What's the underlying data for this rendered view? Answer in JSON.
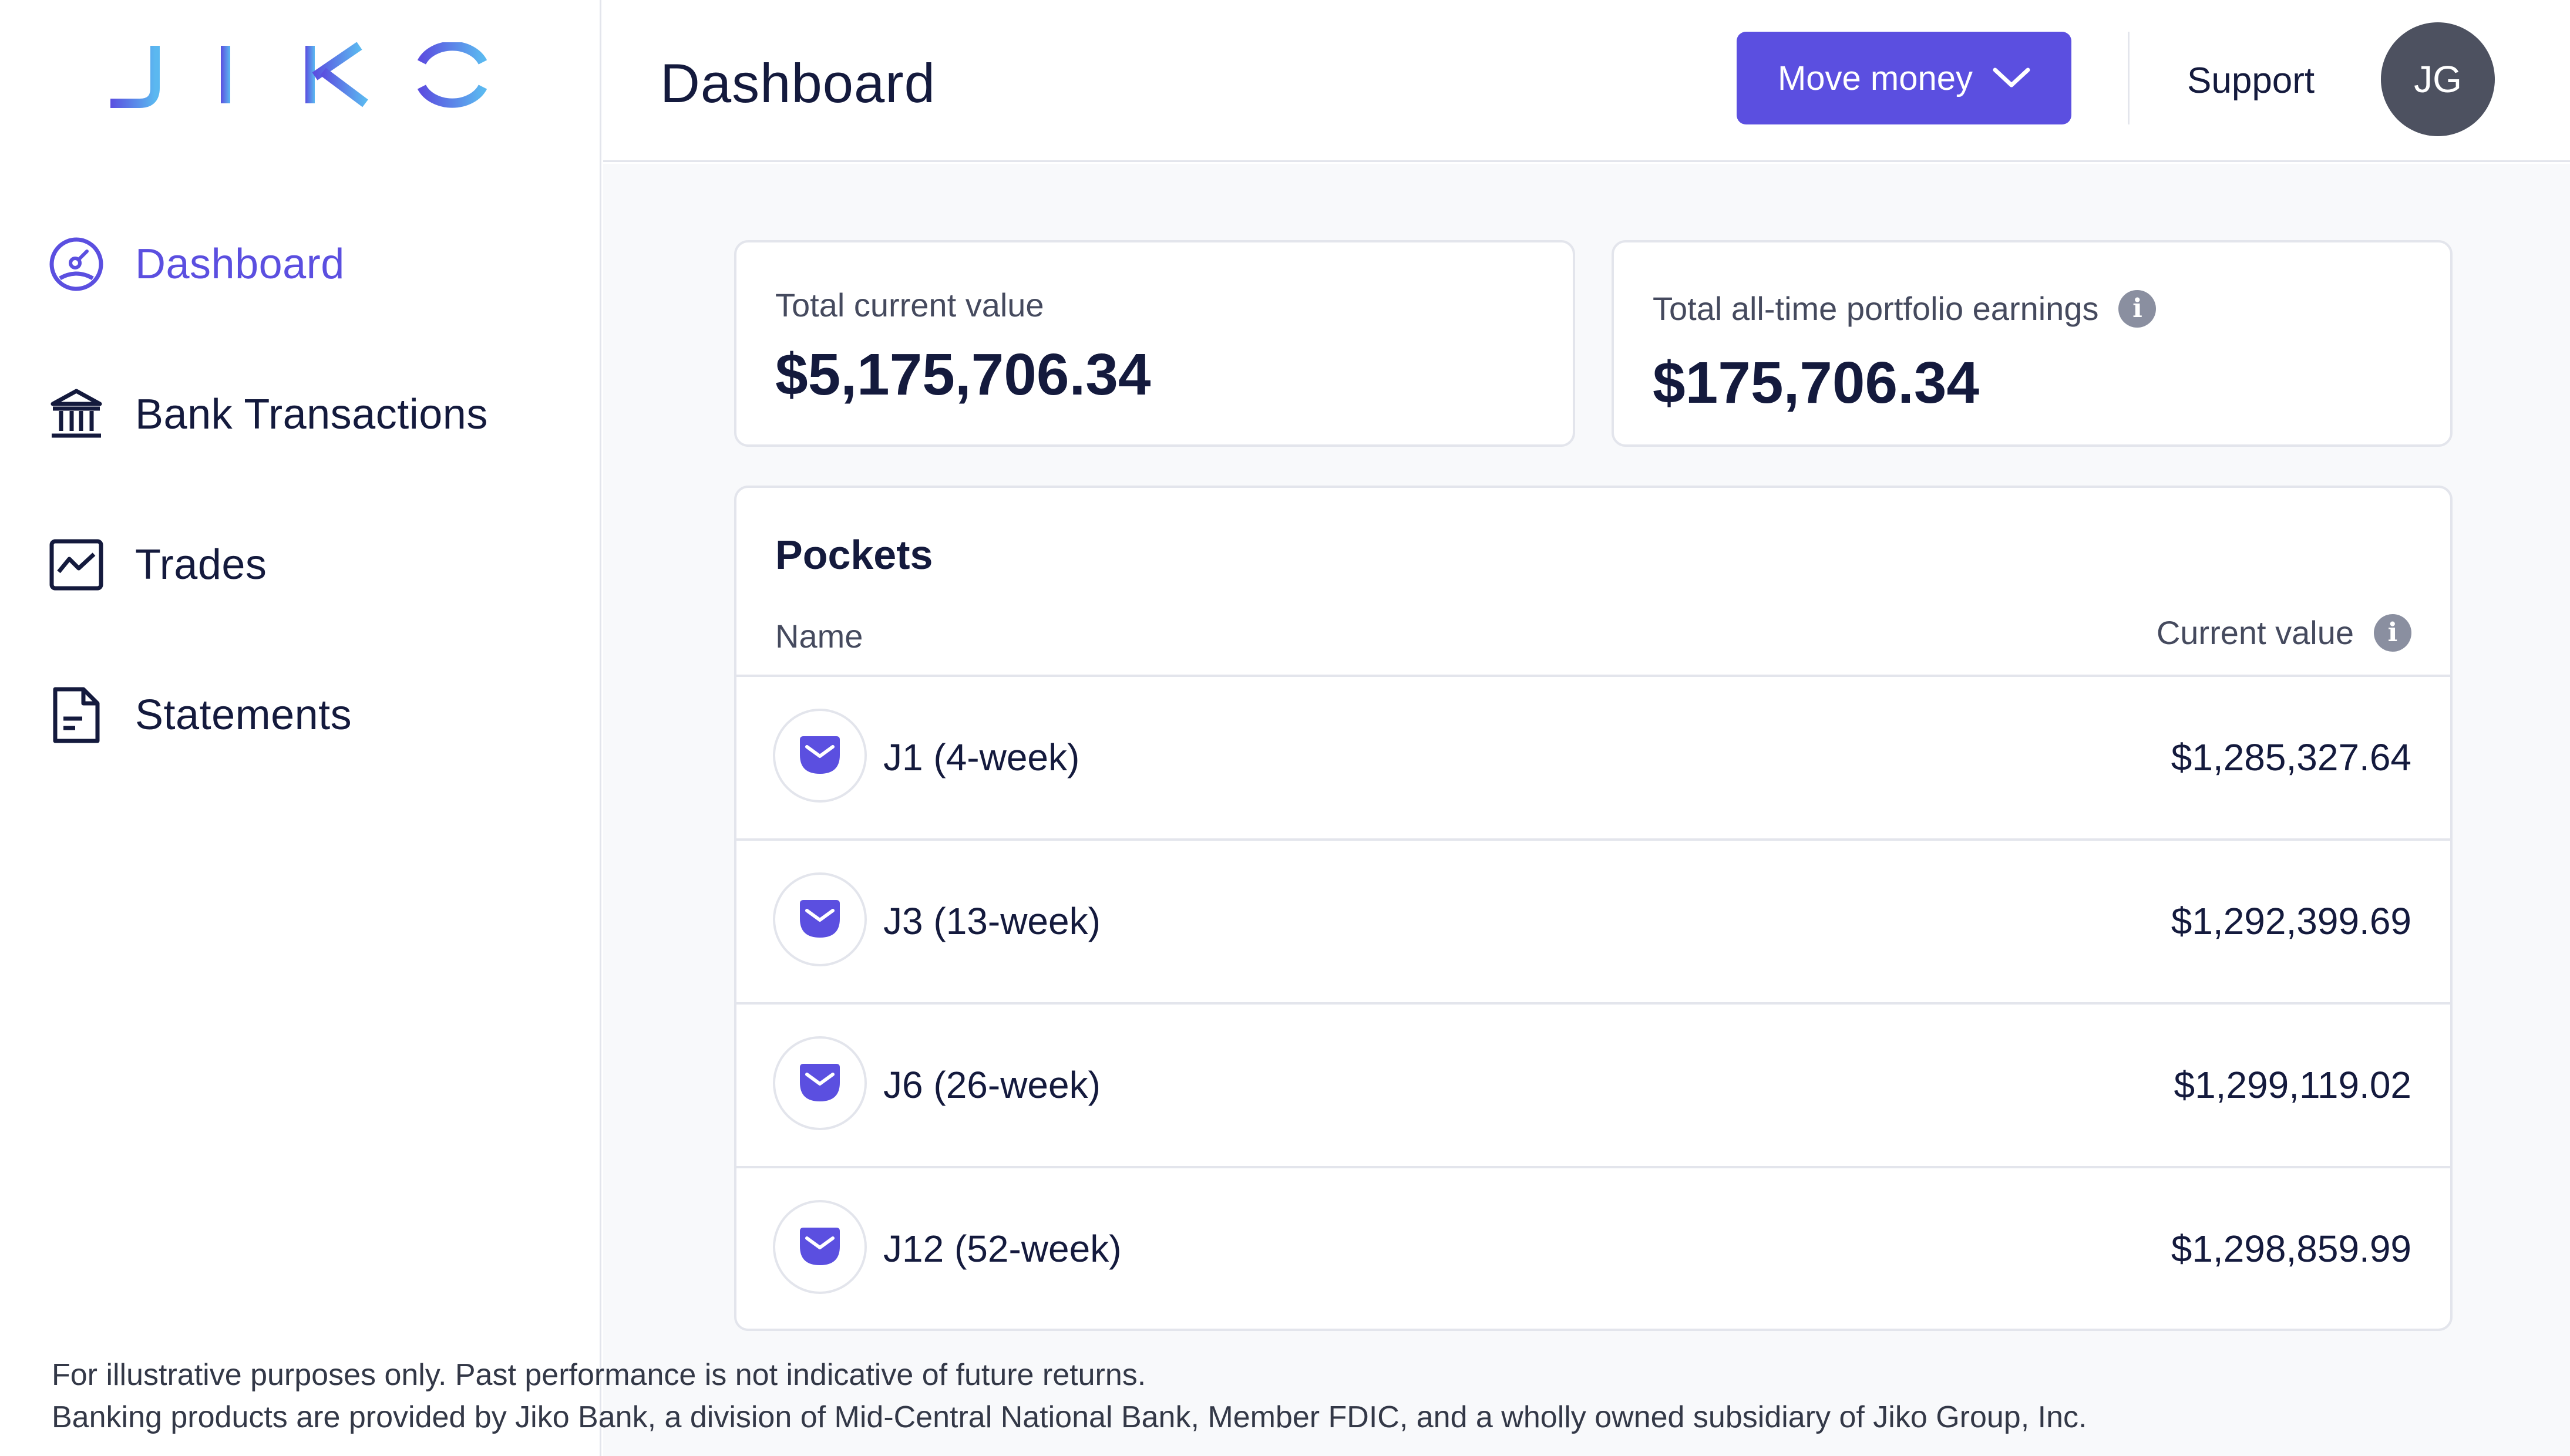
{
  "brand": {
    "logo_text": "JIKO"
  },
  "sidebar": {
    "items": [
      {
        "label": "Dashboard",
        "icon": "gauge-icon",
        "active": true
      },
      {
        "label": "Bank Transactions",
        "icon": "bank-icon",
        "active": false
      },
      {
        "label": "Trades",
        "icon": "chart-line-icon",
        "active": false
      },
      {
        "label": "Statements",
        "icon": "document-icon",
        "active": false
      }
    ]
  },
  "header": {
    "title": "Dashboard",
    "move_money_label": "Move money",
    "support_label": "Support",
    "avatar_initials": "JG"
  },
  "summary": {
    "total_current_value_label": "Total current value",
    "total_current_value": "$5,175,706.34",
    "earnings_label": "Total all-time portfolio earnings",
    "earnings_value": "$175,706.34"
  },
  "pockets": {
    "title": "Pockets",
    "col_name": "Name",
    "col_value": "Current value",
    "rows": [
      {
        "name": "J1 (4-week)",
        "value": "$1,285,327.64"
      },
      {
        "name": "J3 (13-week)",
        "value": "$1,292,399.69"
      },
      {
        "name": "J6 (26-week)",
        "value": "$1,299,119.02"
      },
      {
        "name": "J12 (52-week)",
        "value": "$1,298,859.99"
      }
    ]
  },
  "footer": {
    "line1": "For illustrative purposes only. Past performance is not indicative of future returns.",
    "line2": "Banking products are provided by Jiko Bank, a division of Mid-Central National Bank, Member FDIC, and a wholly owned subsidiary of Jiko Group, Inc."
  },
  "colors": {
    "accent": "#5b4fe0",
    "text": "#141a3d",
    "border": "#e3e5ec",
    "avatar_bg": "#4d5160",
    "logo_gradient_start": "#5b4fe0",
    "logo_gradient_end": "#5bb8f0"
  }
}
